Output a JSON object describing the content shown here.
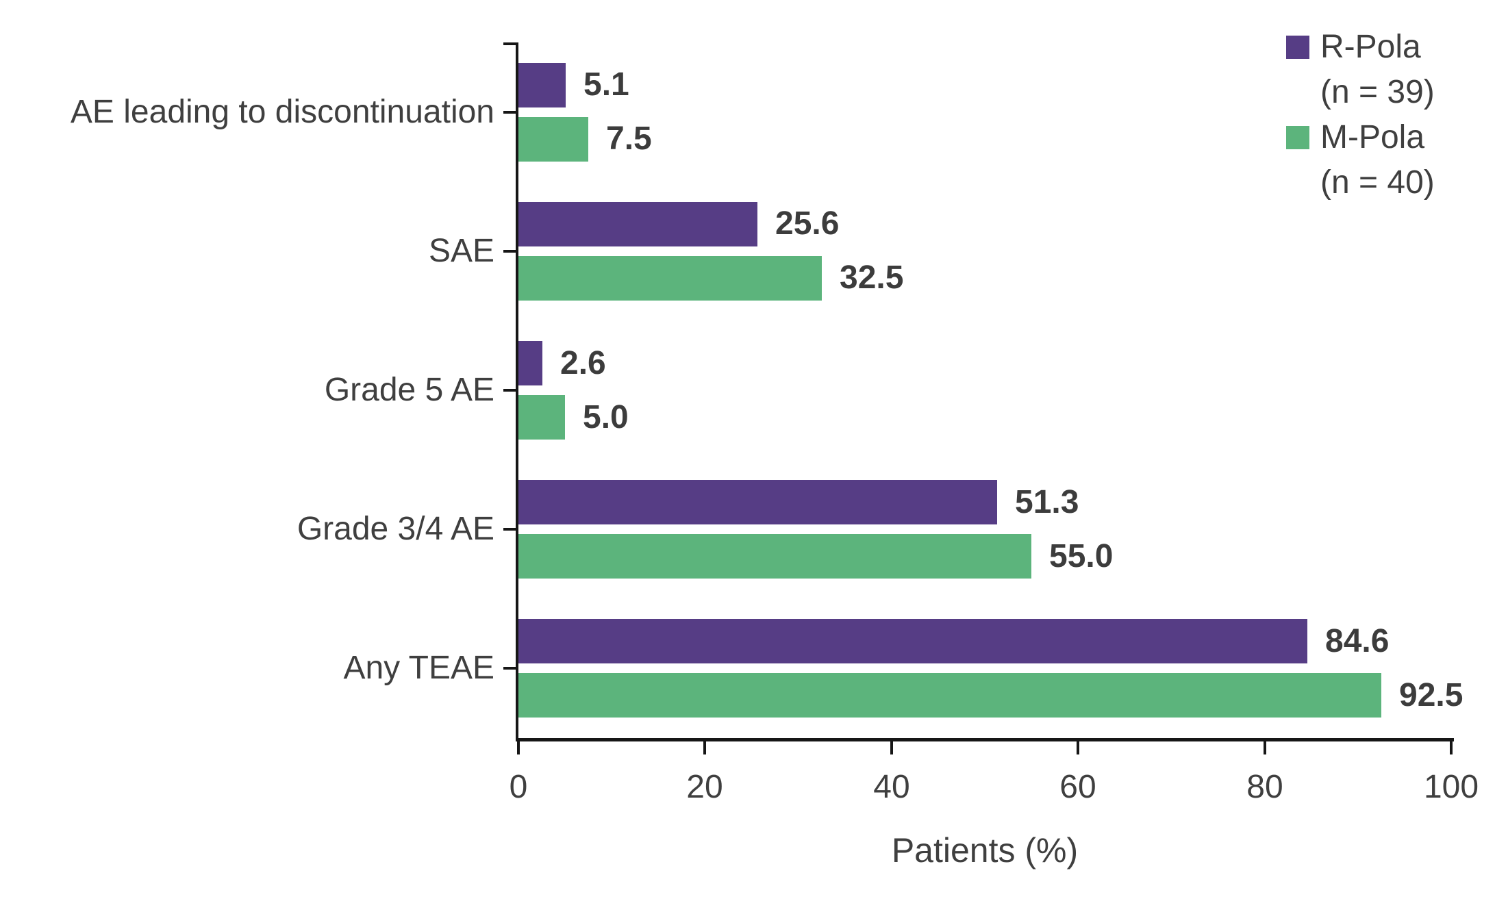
{
  "chart_data": {
    "type": "bar",
    "orientation": "horizontal",
    "title": "",
    "xlabel": "Patients (%)",
    "ylabel": "",
    "xlim": [
      0,
      100
    ],
    "x_ticks": [
      0,
      20,
      40,
      60,
      80,
      100
    ],
    "grid": false,
    "legend_position": "top-right",
    "categories": [
      "AE leading to discontinuation",
      "SAE",
      "Grade 5 AE",
      "Grade 3/4 AE",
      "Any TEAE"
    ],
    "series": [
      {
        "name": "R-Pola",
        "n_label": "(n = 39)",
        "color": "#563D85",
        "values": [
          5.1,
          25.6,
          2.6,
          51.3,
          84.6
        ],
        "value_labels": [
          "5.1",
          "25.6",
          "2.6",
          "51.3",
          "84.6"
        ]
      },
      {
        "name": "M-Pola",
        "n_label": "(n = 40)",
        "color": "#5CB47C",
        "values": [
          7.5,
          32.5,
          5.0,
          55.0,
          92.5
        ],
        "value_labels": [
          "7.5",
          "32.5",
          "5.0",
          "55.0",
          "92.5"
        ]
      }
    ]
  },
  "colors": {
    "background": "#FFFFFF",
    "axis": "#161616",
    "text": "#3F3F3F",
    "value_text": "#3C3C3C"
  }
}
